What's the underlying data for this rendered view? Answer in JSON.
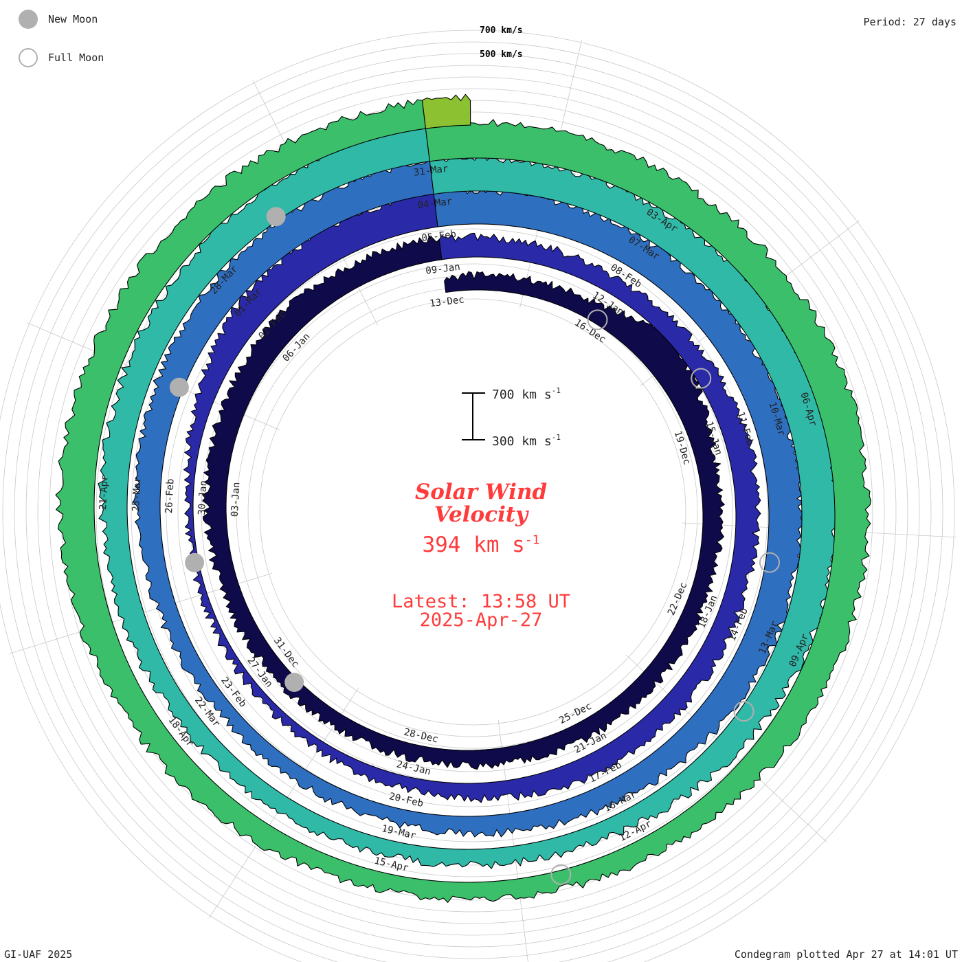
{
  "legend": {
    "new_moon_label": "New Moon",
    "full_moon_label": "Full Moon"
  },
  "period_label": "Period: 27 days",
  "footer": {
    "left": "GI-UAF 2025",
    "right": "Condegram plotted Apr 27 at 14:01 UT"
  },
  "title": {
    "line1": "Solar Wind",
    "line2": "Velocity"
  },
  "current_value": {
    "number": "394",
    "unit": "km s",
    "exp": "-1"
  },
  "latest": {
    "time": "Latest: 13:58 UT",
    "date": "2025-Apr-27"
  },
  "chart_data": {
    "type": "area",
    "layout": "condegram-spiral",
    "period_days": 27,
    "scale_reference": {
      "labels": [
        "700 km/s",
        "500 km/s"
      ]
    },
    "scale_bar": {
      "top": "700 km s",
      "bottom": "300 km s",
      "exp": "-1"
    },
    "date_labels": [
      "13-Dec",
      "16-Dec",
      "19-Dec",
      "22-Dec",
      "25-Dec",
      "28-Dec",
      "31-Dec",
      "03-Jan",
      "06-Jan",
      "09-Jan",
      "12-Jan",
      "15-Jan",
      "18-Jan",
      "21-Jan",
      "24-Jan",
      "27-Jan",
      "30-Jan",
      "02-Feb",
      "05-Feb",
      "08-Feb",
      "11-Feb",
      "14-Feb",
      "17-Feb",
      "20-Feb",
      "23-Feb",
      "26-Feb",
      "01-Mar",
      "04-Mar",
      "07-Mar",
      "10-Mar",
      "13-Mar",
      "16-Mar",
      "19-Mar",
      "22-Mar",
      "25-Mar",
      "28-Mar",
      "31-Mar",
      "03-Apr",
      "06-Apr",
      "09-Apr",
      "12-Apr",
      "15-Apr",
      "18-Apr",
      "21-Apr"
    ],
    "date_label_days": [
      0,
      3,
      6,
      9,
      12,
      15,
      18,
      21,
      24,
      27,
      30,
      33,
      36,
      39,
      42,
      45,
      48,
      51,
      54,
      57,
      60,
      63,
      66,
      69,
      72,
      75,
      78,
      81,
      84,
      87,
      90,
      93,
      96,
      99,
      102,
      105,
      108,
      111,
      114,
      117,
      120,
      123,
      126,
      129
    ],
    "series_colors": [
      "#0f0a4a",
      "#2a2aa8",
      "#2f6fc0",
      "#31b9a8",
      "#3cbf6a",
      "#8cc232",
      "#c2a81a",
      "#c97a12",
      "#c8400e"
    ],
    "speed_km_s_key_days": [
      [
        0,
        420
      ],
      [
        3,
        450
      ],
      [
        4,
        620
      ],
      [
        5,
        560
      ],
      [
        6,
        470
      ],
      [
        9,
        440
      ],
      [
        12,
        450
      ],
      [
        15,
        420
      ],
      [
        18,
        430
      ],
      [
        21,
        470
      ],
      [
        24,
        520
      ],
      [
        27,
        480
      ],
      [
        30,
        440
      ],
      [
        33,
        500
      ],
      [
        36,
        460
      ],
      [
        39,
        480
      ],
      [
        42,
        410
      ],
      [
        45,
        360
      ],
      [
        48,
        340
      ],
      [
        51,
        560
      ],
      [
        54,
        600
      ],
      [
        57,
        560
      ],
      [
        60,
        580
      ],
      [
        63,
        560
      ],
      [
        66,
        490
      ],
      [
        69,
        430
      ],
      [
        72,
        420
      ],
      [
        75,
        500
      ],
      [
        78,
        560
      ],
      [
        81,
        590
      ],
      [
        84,
        570
      ],
      [
        87,
        620
      ],
      [
        90,
        560
      ],
      [
        93,
        450
      ],
      [
        96,
        430
      ],
      [
        99,
        460
      ],
      [
        102,
        520
      ],
      [
        105,
        560
      ],
      [
        108,
        620
      ],
      [
        111,
        580
      ],
      [
        114,
        600
      ],
      [
        117,
        560
      ],
      [
        120,
        470
      ],
      [
        123,
        440
      ],
      [
        126,
        520
      ],
      [
        129,
        600
      ],
      [
        132,
        560
      ],
      [
        135,
        530
      ]
    ],
    "new_moon_days": [
      17.5,
      47,
      76.5,
      106
    ],
    "full_moon_days": [
      3,
      32,
      62,
      91,
      121
    ],
    "grid": true
  }
}
